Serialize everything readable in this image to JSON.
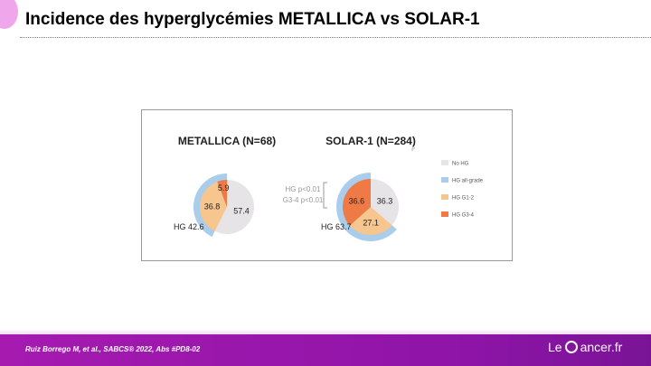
{
  "slide": {
    "title": "Incidence des hyperglycémies METALLICA vs SOLAR-1",
    "citation": "Ruiz Borrego M, et al., SABCS® 2022, Abs #PD8-02",
    "logo_left": "Le",
    "logo_right": "ancer.fr",
    "logo_full": "Le Cancer.fr"
  },
  "colors": {
    "no_hg": "#e6e4e6",
    "hg_all_grade": "#a9cdea",
    "hg_g1_2": "#f7c68f",
    "hg_g3_4": "#ef7a45",
    "accent": "#a61ab0"
  },
  "chart_data": {
    "type": "pie",
    "legend": {
      "placement": "right",
      "entries": [
        {
          "label": "No HG",
          "color": "#e6e4e6"
        },
        {
          "label": "HG all-grade",
          "color": "#a9cdea"
        },
        {
          "label": "HG G1-2",
          "color": "#f7c68f"
        },
        {
          "label": "HG G3-4",
          "color": "#ef7a45"
        }
      ]
    },
    "charts": [
      {
        "title": "METALLICA (N=68)",
        "slices": [
          {
            "label": "No HG",
            "value": 57.4,
            "label_text": "57.4"
          },
          {
            "label": "HG G1-2",
            "value": 36.8,
            "label_text": "36.8"
          },
          {
            "label": "HG G3-4",
            "value": 5.9,
            "label_text": "5.9"
          }
        ],
        "hg_all_grade": {
          "value": 42.6,
          "label_text": "HG 42.6"
        }
      },
      {
        "title": "SOLAR-1 (N=284)",
        "slices": [
          {
            "label": "No HG",
            "value": 36.3,
            "label_text": "36.3"
          },
          {
            "label": "HG G1-2",
            "value": 27.1,
            "label_text": "27.1"
          },
          {
            "label": "HG G3-4",
            "value": 36.6,
            "label_text": "36.6"
          }
        ],
        "hg_all_grade": {
          "value": 63.7,
          "label_text": "HG 63.7"
        }
      }
    ],
    "annotations": [
      "HG p<0.01",
      "G3-4 p<0.01"
    ]
  }
}
